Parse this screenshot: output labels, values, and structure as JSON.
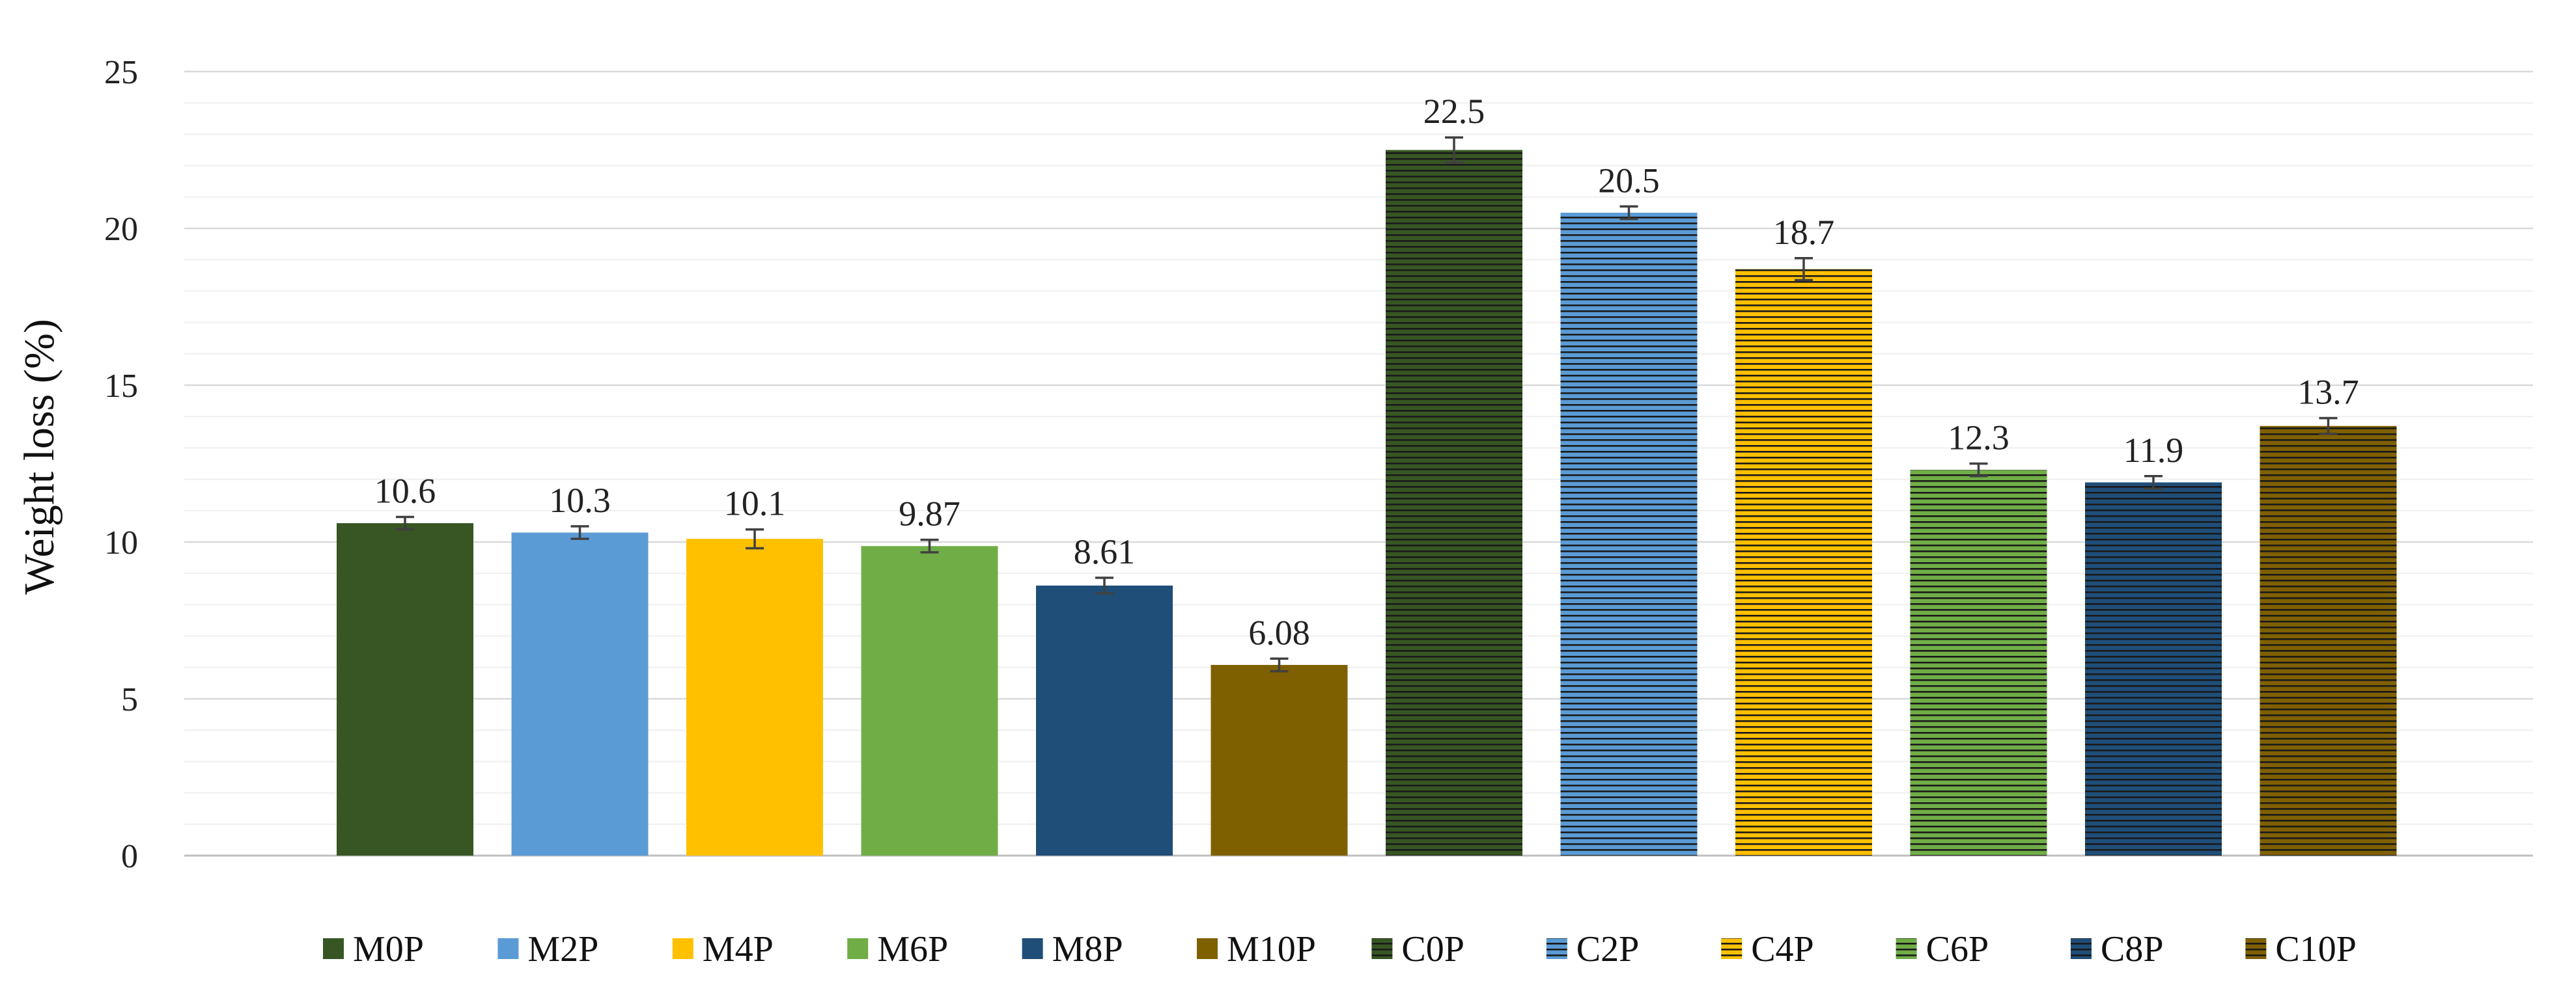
{
  "chart_data": {
    "type": "bar",
    "title": "",
    "xlabel": "",
    "ylabel": "Weight loss (%)",
    "ylim": [
      0,
      25
    ],
    "yticks": [
      0,
      5,
      10,
      15,
      20,
      25
    ],
    "grid": true,
    "legend_position": "bottom",
    "categories": [
      "M0P",
      "M2P",
      "M4P",
      "M6P",
      "M8P",
      "M10P",
      "C0P",
      "C2P",
      "C4P",
      "C6P",
      "C8P",
      "C10P"
    ],
    "values": [
      10.6,
      10.3,
      10.1,
      9.87,
      8.61,
      6.08,
      22.5,
      20.5,
      18.7,
      12.3,
      11.9,
      13.7
    ],
    "value_labels": [
      "10.6",
      "10.3",
      "10.1",
      "9.87",
      "8.61",
      "6.08",
      "22.5",
      "20.5",
      "18.7",
      "12.3",
      "11.9",
      "13.7"
    ],
    "error": [
      0.2,
      0.2,
      0.3,
      0.2,
      0.25,
      0.2,
      0.4,
      0.2,
      0.35,
      0.2,
      0.2,
      0.25
    ],
    "colors": [
      "#375623",
      "#5B9BD5",
      "#FFC000",
      "#70AD47",
      "#1F4E79",
      "#7F6000",
      "#375623",
      "#5B9BD5",
      "#FFC000",
      "#70AD47",
      "#1F4E79",
      "#7F6000"
    ],
    "hatched": [
      false,
      false,
      false,
      false,
      false,
      false,
      true,
      true,
      true,
      true,
      true,
      true
    ]
  }
}
